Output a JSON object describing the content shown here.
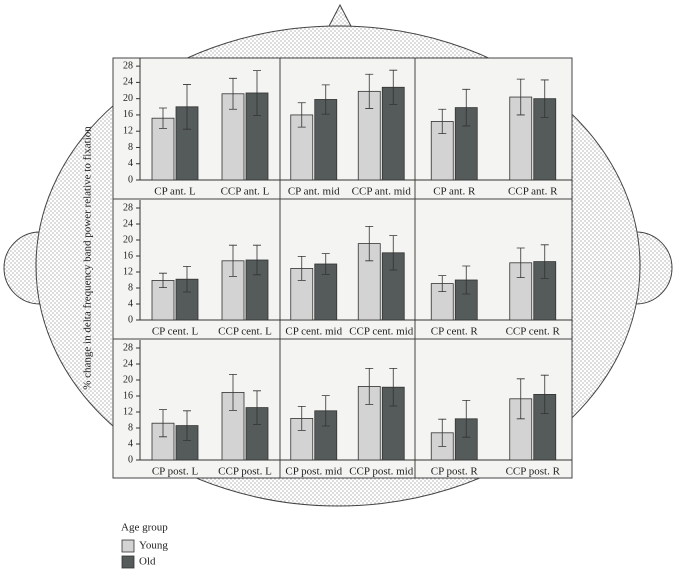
{
  "ylabel": "% change in delta frequency band power relative to fixation",
  "legend_title": "Age group",
  "chart_data": [
    {
      "type": "bar",
      "categories": [
        "CP ant. L",
        "CCP ant. L"
      ],
      "ylim": [
        0,
        30
      ],
      "yticks": [
        0,
        4,
        8,
        12,
        16,
        20,
        24,
        28
      ],
      "series": [
        {
          "name": "Young",
          "color": "#d3d3d3",
          "values": [
            15.2,
            21.2
          ],
          "errors": [
            2.5,
            3.8
          ]
        },
        {
          "name": "Old",
          "color": "#555a5a",
          "values": [
            18,
            21.4
          ],
          "errors": [
            5.5,
            5.5
          ]
        }
      ]
    },
    {
      "type": "bar",
      "categories": [
        "CP ant. mid",
        "CCP ant. mid"
      ],
      "ylim": [
        0,
        30
      ],
      "series": [
        {
          "color": "#d3d3d3",
          "values": [
            16,
            21.8
          ],
          "errors": [
            3,
            4.2
          ]
        },
        {
          "color": "#555a5a",
          "values": [
            19.8,
            22.8
          ],
          "errors": [
            3.6,
            4.2
          ]
        }
      ]
    },
    {
      "type": "bar",
      "categories": [
        "CP ant. R",
        "CCP ant. R"
      ],
      "ylim": [
        0,
        30
      ],
      "series": [
        {
          "color": "#d3d3d3",
          "values": [
            14.4,
            20.4
          ],
          "errors": [
            3,
            4.4
          ]
        },
        {
          "color": "#555a5a",
          "values": [
            17.8,
            20
          ],
          "errors": [
            4.5,
            4.6
          ]
        }
      ]
    },
    {
      "type": "bar",
      "categories": [
        "CP cent. L",
        "CCP cent. L"
      ],
      "ylim": [
        0,
        30
      ],
      "yticks": [
        0,
        4,
        8,
        12,
        16,
        20,
        24,
        28
      ],
      "series": [
        {
          "color": "#d3d3d3",
          "values": [
            9.9,
            14.8
          ],
          "errors": [
            1.8,
            3.9
          ]
        },
        {
          "color": "#555a5a",
          "values": [
            10.2,
            15
          ],
          "errors": [
            3.2,
            3.7
          ]
        }
      ]
    },
    {
      "type": "bar",
      "categories": [
        "CP cent. mid",
        "CCP cent. mid"
      ],
      "ylim": [
        0,
        30
      ],
      "series": [
        {
          "color": "#d3d3d3",
          "values": [
            12.9,
            19.1
          ],
          "errors": [
            3,
            4.3
          ]
        },
        {
          "color": "#555a5a",
          "values": [
            14,
            16.8
          ],
          "errors": [
            2.6,
            4.3
          ]
        }
      ]
    },
    {
      "type": "bar",
      "categories": [
        "CP cent. R",
        "CCP cent. R"
      ],
      "ylim": [
        0,
        30
      ],
      "series": [
        {
          "color": "#d3d3d3",
          "values": [
            9.1,
            14.3
          ],
          "errors": [
            2,
            3.7
          ]
        },
        {
          "color": "#555a5a",
          "values": [
            10,
            14.6
          ],
          "errors": [
            3.5,
            4.2
          ]
        }
      ]
    },
    {
      "type": "bar",
      "categories": [
        "CP post. L",
        "CCP post. L"
      ],
      "ylim": [
        0,
        30
      ],
      "yticks": [
        0,
        4,
        8,
        12,
        16,
        20,
        24,
        28
      ],
      "series": [
        {
          "color": "#d3d3d3",
          "values": [
            9.2,
            16.9
          ],
          "errors": [
            3.4,
            4.5
          ]
        },
        {
          "color": "#555a5a",
          "values": [
            8.6,
            13.1
          ],
          "errors": [
            3.7,
            4.2
          ]
        }
      ]
    },
    {
      "type": "bar",
      "categories": [
        "CP post. mid",
        "CCP post. mid"
      ],
      "ylim": [
        0,
        30
      ],
      "series": [
        {
          "color": "#d3d3d3",
          "values": [
            10.4,
            18.4
          ],
          "errors": [
            3,
            4.5
          ]
        },
        {
          "color": "#555a5a",
          "values": [
            12.3,
            18.2
          ],
          "errors": [
            3.8,
            4.7
          ]
        }
      ]
    },
    {
      "type": "bar",
      "categories": [
        "CP post. R",
        "CCP post. R"
      ],
      "ylim": [
        0,
        30
      ],
      "series": [
        {
          "color": "#d3d3d3",
          "values": [
            6.8,
            15.3
          ],
          "errors": [
            3.4,
            5
          ]
        },
        {
          "color": "#555a5a",
          "values": [
            10.3,
            16.4
          ],
          "errors": [
            4.6,
            4.8
          ]
        }
      ]
    }
  ]
}
